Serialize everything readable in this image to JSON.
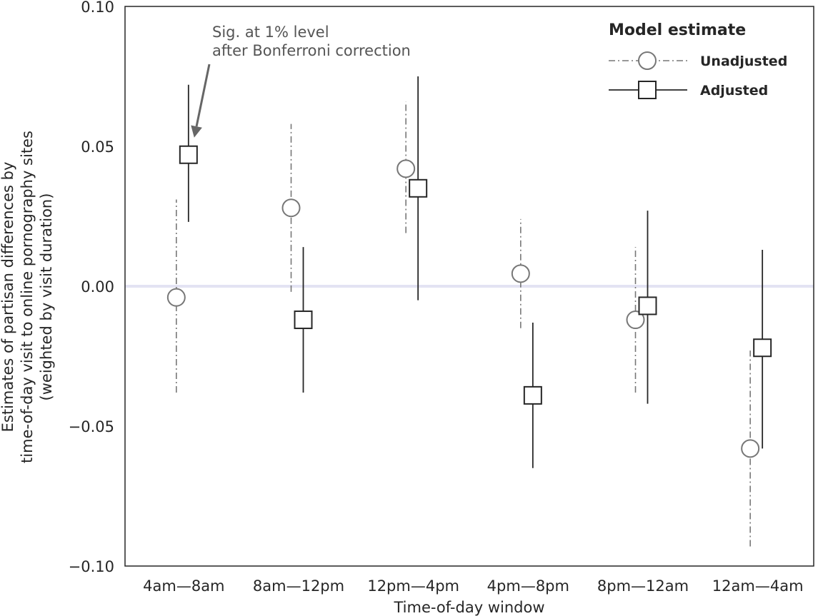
{
  "chart_data": {
    "type": "scatter",
    "subtype": "point-with-error-bars",
    "title": "",
    "xlabel": "Time-of-day window",
    "ylabel_lines": [
      "Estimates of partisan differences by",
      "time-of-day visit to online pornography sites",
      "(weighted by visit duration)"
    ],
    "categories": [
      "4am—8am",
      "8am—12pm",
      "12pm—4pm",
      "4pm—8pm",
      "8pm—12am",
      "12am—4am"
    ],
    "ylim": [
      -0.1,
      0.1
    ],
    "yticks": [
      -0.1,
      -0.05,
      0.0,
      0.05,
      0.1
    ],
    "ytick_labels": [
      "−0.10",
      "−0.05",
      "0.00",
      "0.05",
      "0.10"
    ],
    "reference_line": 0.0,
    "grid": false,
    "legend": {
      "title": "Model estimate",
      "position": "top-right"
    },
    "series": [
      {
        "name": "Unadjusted",
        "marker": "circle",
        "line_style": "dash-dot",
        "color": "#777777",
        "values": [
          -0.004,
          0.028,
          0.042,
          0.0045,
          -0.012,
          -0.058
        ],
        "ci_low": [
          -0.038,
          -0.002,
          0.019,
          -0.015,
          -0.038,
          -0.093
        ],
        "ci_high": [
          0.031,
          0.058,
          0.066,
          0.024,
          0.014,
          -0.023
        ]
      },
      {
        "name": "Adjusted",
        "marker": "square",
        "line_style": "solid",
        "color": "#262626",
        "values": [
          0.047,
          -0.012,
          0.035,
          -0.039,
          -0.007,
          -0.022
        ],
        "ci_low": [
          0.023,
          -0.038,
          -0.005,
          -0.065,
          -0.042,
          -0.058
        ],
        "ci_high": [
          0.072,
          0.014,
          0.075,
          -0.013,
          0.027,
          0.013
        ]
      }
    ],
    "annotation": {
      "lines": [
        "Sig. at 1% level",
        "after Bonferroni correction"
      ],
      "arrow_target": {
        "category": "4am—8am",
        "series": "Adjusted"
      }
    }
  }
}
